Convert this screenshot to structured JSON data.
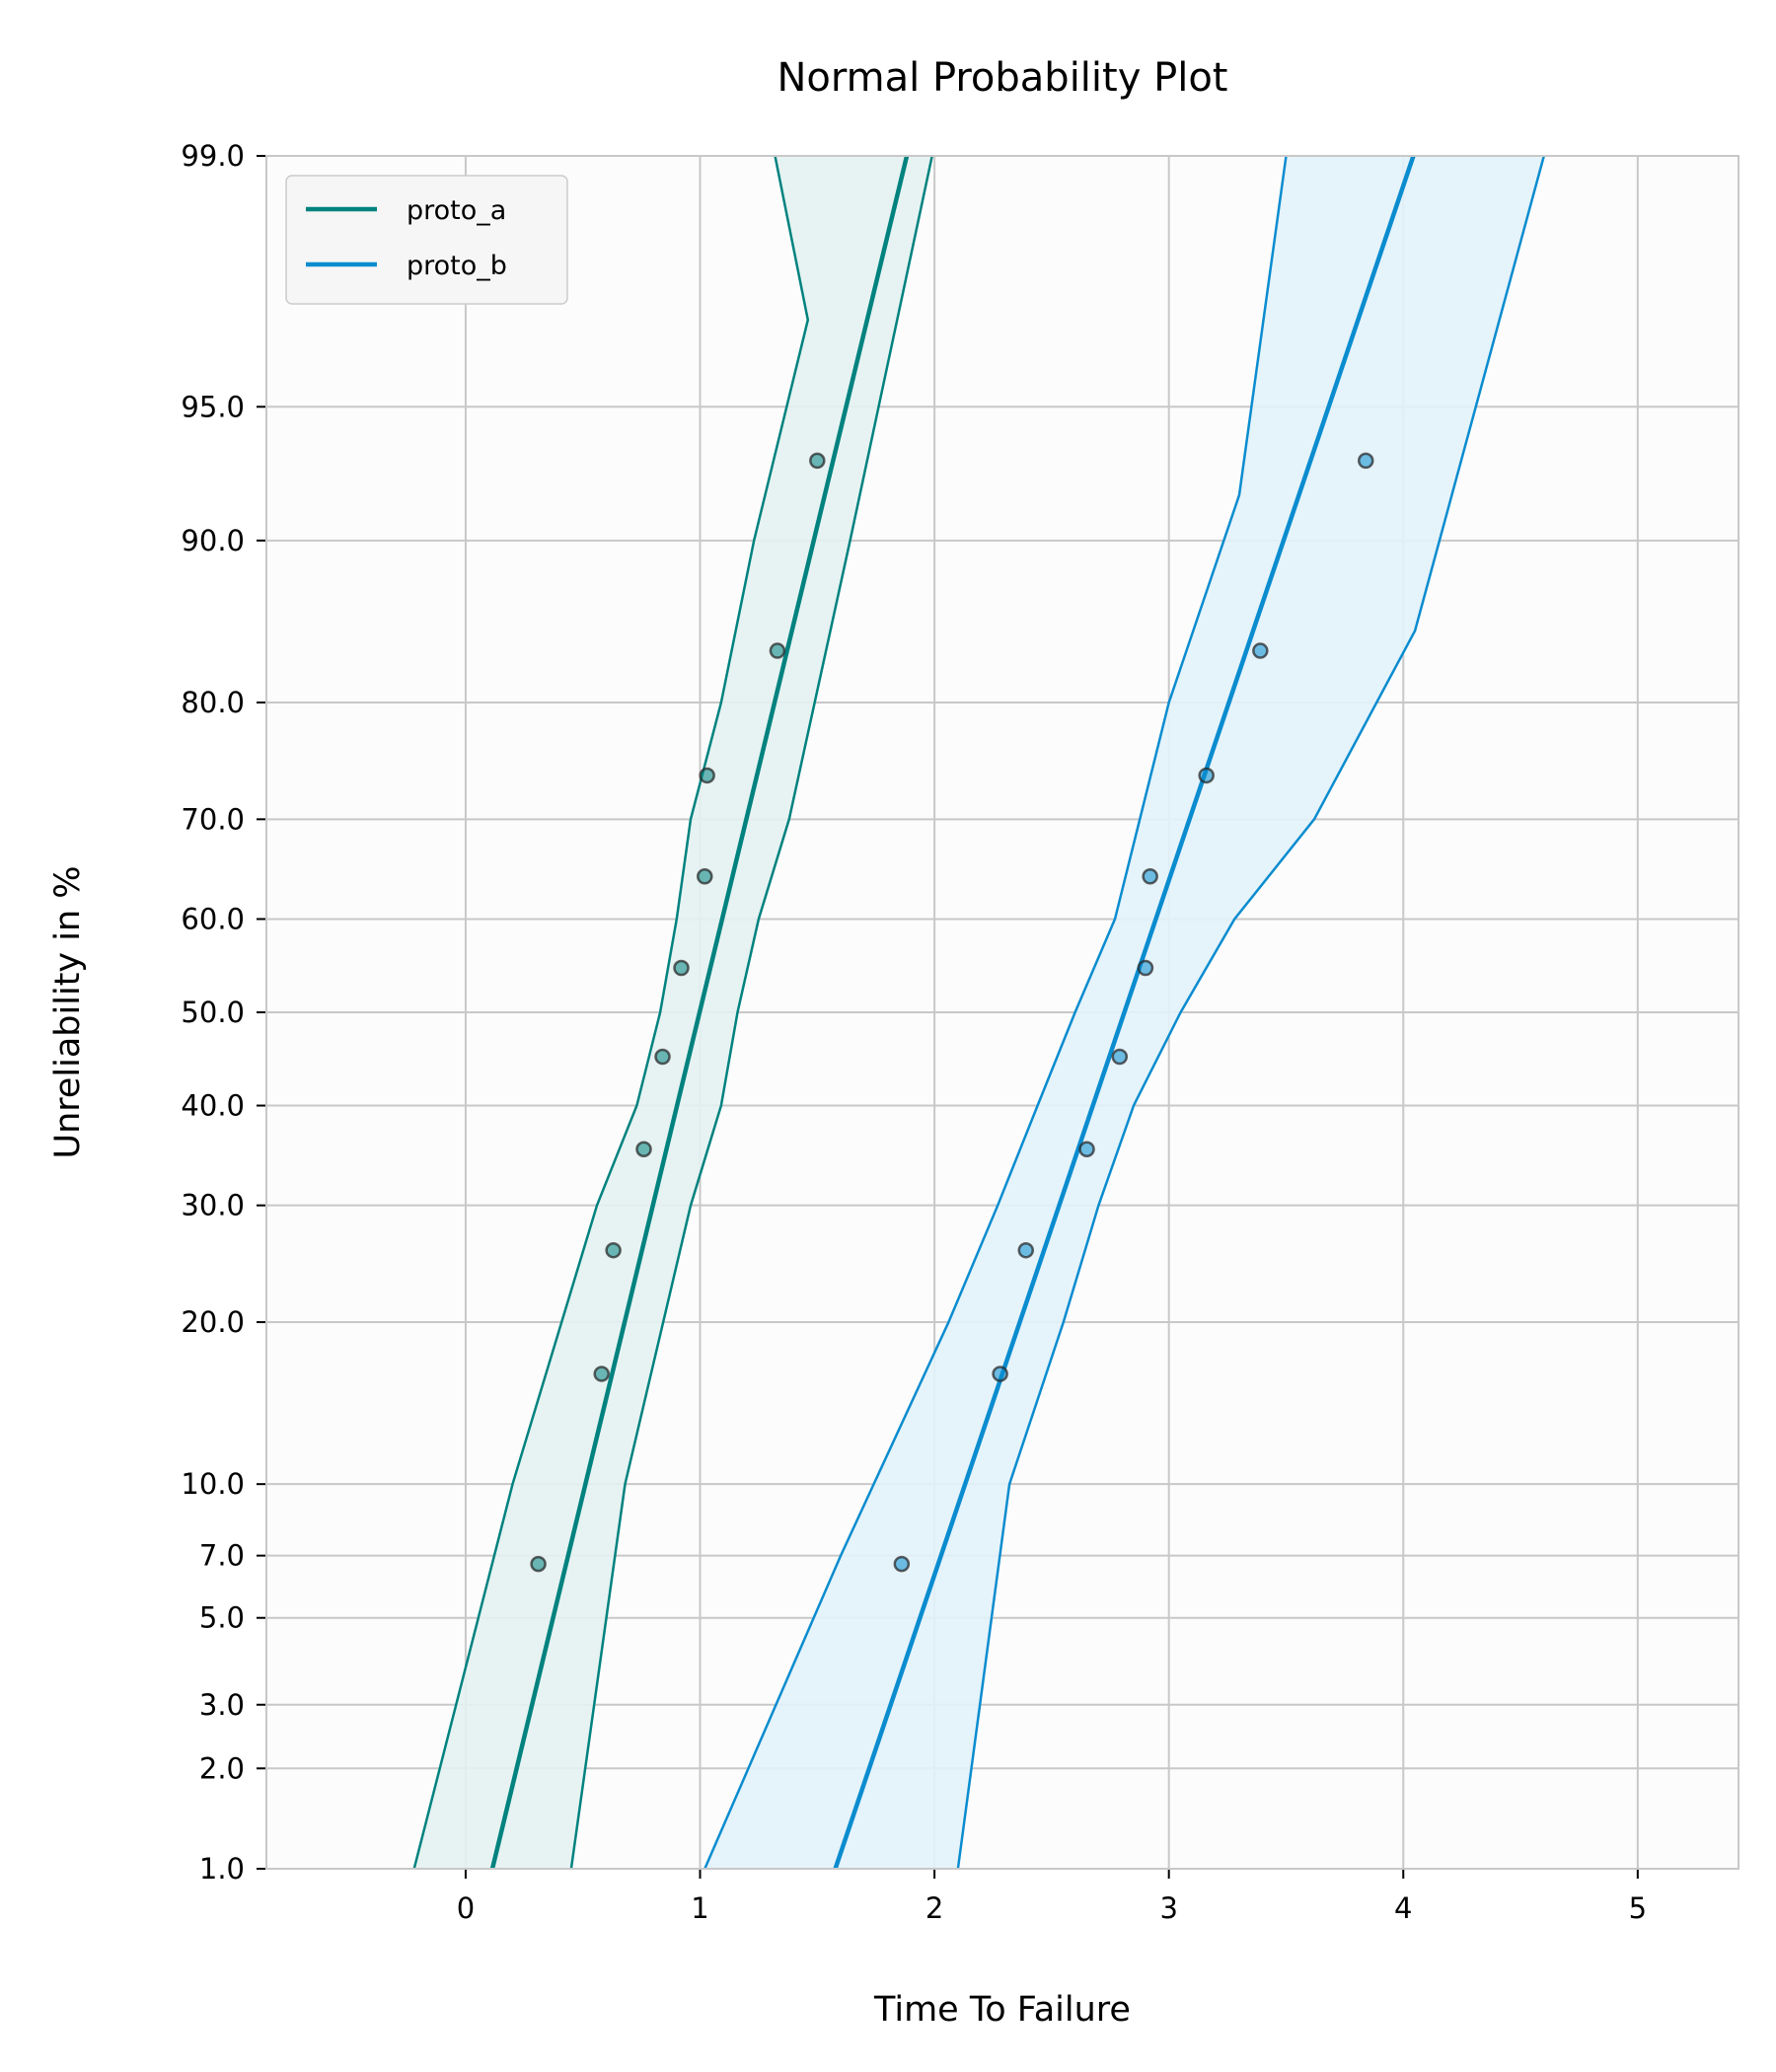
{
  "chart_data": {
    "type": "scatter",
    "title": "Normal Probability Plot",
    "xlabel": "Time To Failure",
    "ylabel": "Unreliability in %",
    "xlim": [
      -0.85,
      5.43
    ],
    "ylim_percent": [
      1.0,
      99.0
    ],
    "y_scale": "normal-probability",
    "grid": true,
    "legend_position": "top-left",
    "x_ticks": [
      "0",
      "1",
      "2",
      "3",
      "4",
      "5"
    ],
    "x_tick_values": [
      0,
      1,
      2,
      3,
      4,
      5
    ],
    "y_ticks": [
      "1.0",
      "2.0",
      "3.0",
      "5.0",
      "7.0",
      "10.0",
      "20.0",
      "30.0",
      "40.0",
      "50.0",
      "60.0",
      "70.0",
      "80.0",
      "90.0",
      "95.0",
      "99.0"
    ],
    "y_tick_values": [
      1,
      2,
      3,
      5,
      7,
      10,
      20,
      30,
      40,
      50,
      60,
      70,
      80,
      90,
      95,
      99
    ],
    "series": [
      {
        "name": "proto_a",
        "color": "#00827f",
        "fill": "#e3f2f1",
        "fit_mu": 0.998,
        "fit_sigma": 0.38,
        "ci_lower_x": [
          -0.22,
          0.2,
          0.56,
          0.73,
          0.83,
          0.9,
          0.96,
          1.09,
          1.23,
          1.46,
          1.32
        ],
        "ci_lower_p": [
          1,
          10,
          30,
          40,
          50,
          60,
          70,
          80,
          90,
          97,
          99
        ],
        "ci_upper_x": [
          0.45,
          0.68,
          0.96,
          1.09,
          1.16,
          1.25,
          1.38,
          1.64,
          1.99
        ],
        "ci_upper_p": [
          1,
          10,
          30,
          40,
          50,
          60,
          70,
          90,
          99
        ],
        "points": [
          {
            "x": 0.31,
            "p": 6.7
          },
          {
            "x": 0.58,
            "p": 16.3
          },
          {
            "x": 0.63,
            "p": 25.9
          },
          {
            "x": 0.76,
            "p": 35.5
          },
          {
            "x": 0.84,
            "p": 45.2
          },
          {
            "x": 0.92,
            "p": 54.8
          },
          {
            "x": 1.02,
            "p": 64.4
          },
          {
            "x": 1.03,
            "p": 74.0
          },
          {
            "x": 1.33,
            "p": 83.7
          },
          {
            "x": 1.5,
            "p": 93.3
          }
        ]
      },
      {
        "name": "proto_b",
        "color": "#0a8ccf",
        "fill": "#e2f2fa",
        "fit_mu": 2.81,
        "fit_sigma": 0.53,
        "ci_lower_x": [
          1.02,
          1.6,
          2.06,
          2.27,
          2.44,
          2.6,
          2.77,
          3.0,
          3.3,
          3.5
        ],
        "ci_lower_p": [
          1,
          7,
          20,
          30,
          40,
          50,
          60,
          80,
          92,
          99
        ],
        "ci_upper_x": [
          2.1,
          2.32,
          2.55,
          2.7,
          2.85,
          3.05,
          3.28,
          3.62,
          4.05,
          4.6
        ],
        "ci_upper_p": [
          1,
          10,
          20,
          30,
          40,
          50,
          60,
          70,
          85,
          99
        ],
        "points": [
          {
            "x": 1.86,
            "p": 6.7
          },
          {
            "x": 2.28,
            "p": 16.3
          },
          {
            "x": 2.39,
            "p": 25.9
          },
          {
            "x": 2.65,
            "p": 35.5
          },
          {
            "x": 2.79,
            "p": 45.2
          },
          {
            "x": 2.9,
            "p": 54.8
          },
          {
            "x": 2.92,
            "p": 64.4
          },
          {
            "x": 3.16,
            "p": 74.0
          },
          {
            "x": 3.39,
            "p": 83.7
          },
          {
            "x": 3.84,
            "p": 93.3
          }
        ]
      }
    ]
  }
}
